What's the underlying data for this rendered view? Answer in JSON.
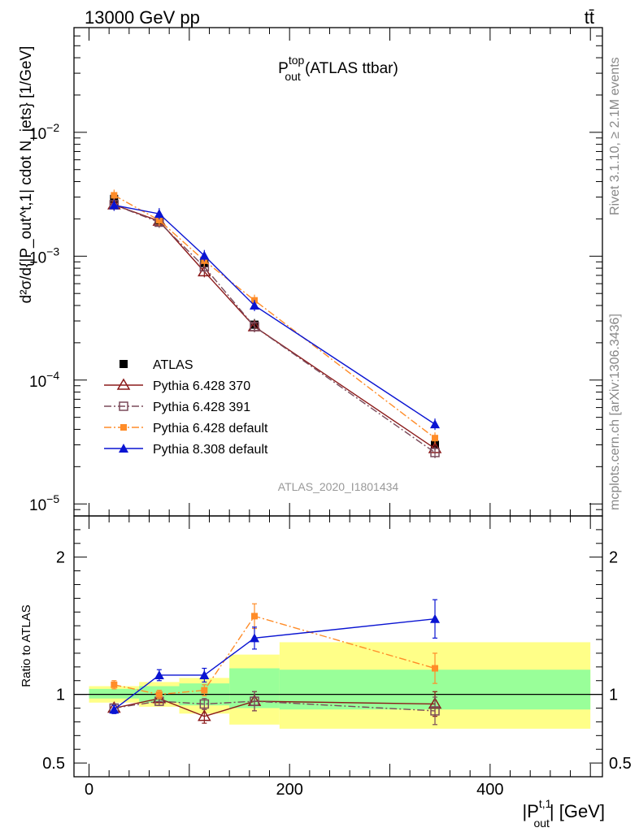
{
  "header": {
    "left": "13000 GeV pp",
    "right": "tt̄"
  },
  "rivet_label": "Rivet 3.1.10, ≥ 2.1M events",
  "mcplots_label": "mcplots.cern.ch [arXiv:1306.3436]",
  "chart_data": [
    {
      "type": "line",
      "panel": "main",
      "title": {
        "main": "P",
        "sup": "top",
        "sub": "out",
        "rest": " (ATLAS ttbar)"
      },
      "analysis_label": "ATLAS_2020_I1801434",
      "ylabel": "d²σ/d{|P_out^t,1| cdot N_jets} [1/GeV]",
      "yscale": "log",
      "ylim": [
        8e-06,
        0.07
      ],
      "xlim": [
        -15,
        512
      ],
      "y_ticks": [
        {
          "value": 0.01,
          "base": "10",
          "exp": "−2"
        },
        {
          "value": 0.001,
          "base": "10",
          "exp": "−3"
        },
        {
          "value": 0.0001,
          "base": "10",
          "exp": "−4"
        },
        {
          "value": 1e-05,
          "base": "10",
          "exp": "−5"
        }
      ],
      "x": [
        25,
        70,
        115,
        165,
        345
      ],
      "series": [
        {
          "name": "ATLAS",
          "color": "#000000",
          "marker": "square-filled",
          "line": "none",
          "values": [
            0.0029,
            0.00195,
            0.00088,
            0.00028,
            3e-05
          ]
        },
        {
          "name": "Pythia 6.428 370",
          "color": "#8b1a1a",
          "marker": "triangle-open",
          "line": "solid",
          "values": [
            0.0026,
            0.00192,
            0.00075,
            0.00027,
            2.8e-05
          ]
        },
        {
          "name": "Pythia 6.428 391",
          "color": "#7a4a5a",
          "marker": "square-open",
          "line": "dashdot",
          "values": [
            0.0026,
            0.00188,
            0.00082,
            0.00027,
            2.6e-05
          ]
        },
        {
          "name": "Pythia 6.428 default",
          "color": "#ff8c28",
          "marker": "square-filled-small",
          "line": "dashdot",
          "values": [
            0.0031,
            0.00195,
            0.00092,
            0.00044,
            3.4e-05
          ]
        },
        {
          "name": "Pythia 8.308 default",
          "color": "#0a14d2",
          "marker": "triangle-filled",
          "line": "solid",
          "values": [
            0.00258,
            0.0022,
            0.00101,
            0.0004,
            4.4e-05
          ]
        }
      ]
    },
    {
      "type": "line",
      "panel": "ratio",
      "ylabel": "Ratio to ATLAS",
      "xlabel": {
        "main": "|P",
        "sup": "t,1",
        "sub": "out",
        "rest": "| [GeV]"
      },
      "ylim": [
        0.4,
        2.3
      ],
      "xlim": [
        -15,
        512
      ],
      "x_ticks": [
        0,
        200,
        400
      ],
      "y_ticks": [
        0.5,
        1,
        2
      ],
      "bands": [
        {
          "x": [
            0,
            50
          ],
          "green": [
            0.97,
            1.04
          ],
          "yellow": [
            0.94,
            1.06
          ]
        },
        {
          "x": [
            50,
            90
          ],
          "green": [
            0.94,
            1.06
          ],
          "yellow": [
            0.91,
            1.09
          ]
        },
        {
          "x": [
            90,
            140
          ],
          "green": [
            0.92,
            1.08
          ],
          "yellow": [
            0.86,
            1.12
          ]
        },
        {
          "x": [
            140,
            190
          ],
          "green": [
            0.9,
            1.19
          ],
          "yellow": [
            0.78,
            1.29
          ]
        },
        {
          "x": [
            190,
            500
          ],
          "green": [
            0.89,
            1.18
          ],
          "yellow": [
            0.75,
            1.38
          ]
        }
      ],
      "x": [
        25,
        70,
        115,
        165,
        345
      ],
      "series": [
        {
          "name": "Pythia 6.428 370",
          "values": [
            0.9,
            0.97,
            0.84,
            0.95,
            0.93
          ],
          "errors": [
            0.03,
            0.03,
            0.05,
            0.07,
            0.09
          ]
        },
        {
          "name": "Pythia 6.428 391",
          "values": [
            0.9,
            0.95,
            0.93,
            0.95,
            0.88
          ],
          "errors": [
            0.03,
            0.03,
            0.04,
            0.07,
            0.1
          ]
        },
        {
          "name": "Pythia 6.428 default",
          "values": [
            1.07,
            1.0,
            1.03,
            1.57,
            1.19
          ],
          "errors": [
            0.03,
            0.03,
            0.04,
            0.09,
            0.11
          ]
        },
        {
          "name": "Pythia 8.308 default",
          "values": [
            0.89,
            1.14,
            1.14,
            1.41,
            1.55
          ],
          "errors": [
            0.03,
            0.04,
            0.05,
            0.08,
            0.14
          ]
        }
      ]
    }
  ]
}
